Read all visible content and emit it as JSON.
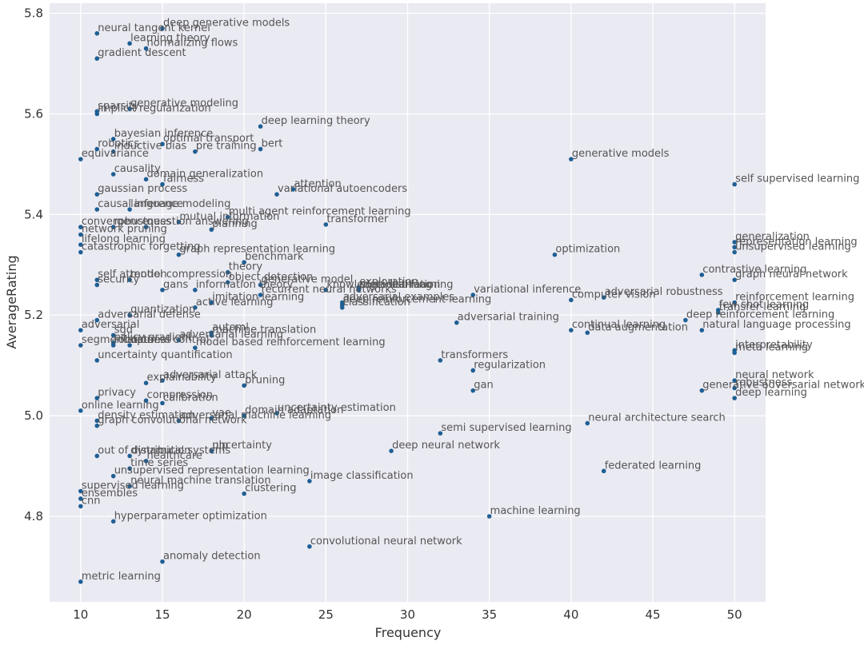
{
  "chart_data": {
    "type": "scatter",
    "title": "",
    "xlabel": "Frequency",
    "ylabel": "AverageRating",
    "xlim": [
      8.1,
      51.9
    ],
    "ylim": [
      4.63,
      5.82
    ],
    "xticks": [
      10,
      15,
      20,
      25,
      30,
      35,
      40,
      45,
      50
    ],
    "yticks": [
      4.8,
      5.0,
      5.2,
      5.4,
      5.6,
      5.8
    ],
    "grid": true,
    "legend": "none",
    "colors": {
      "background": "#eaeaf2",
      "grid": "#ffffff",
      "point": "#1f5f94",
      "label": "#555555"
    },
    "points": [
      {
        "label": "deep generative models",
        "x": 15,
        "y": 5.77
      },
      {
        "label": "neural tangent kernel",
        "x": 11,
        "y": 5.76
      },
      {
        "label": "learning theory",
        "x": 13,
        "y": 5.74
      },
      {
        "label": "normalizing flows",
        "x": 14,
        "y": 5.73
      },
      {
        "label": "gradient descent",
        "x": 11,
        "y": 5.71
      },
      {
        "label": "sparsity",
        "x": 11,
        "y": 5.605
      },
      {
        "label": "generative modeling",
        "x": 13,
        "y": 5.61
      },
      {
        "label": "implicit regularization",
        "x": 11,
        "y": 5.6
      },
      {
        "label": "deep learning theory",
        "x": 21,
        "y": 5.575
      },
      {
        "label": "bayesian inference",
        "x": 12,
        "y": 5.55
      },
      {
        "label": "optimal transport",
        "x": 15,
        "y": 5.54
      },
      {
        "label": "robotics",
        "x": 11,
        "y": 5.53
      },
      {
        "label": "bert",
        "x": 21,
        "y": 5.53
      },
      {
        "label": "inductive bias",
        "x": 12,
        "y": 5.525
      },
      {
        "label": "pre training",
        "x": 17,
        "y": 5.525
      },
      {
        "label": "equivariance",
        "x": 10,
        "y": 5.51
      },
      {
        "label": "generative models",
        "x": 40,
        "y": 5.51
      },
      {
        "label": "causality",
        "x": 12,
        "y": 5.48
      },
      {
        "label": "domain generalization",
        "x": 14,
        "y": 5.47
      },
      {
        "label": "fairness",
        "x": 15,
        "y": 5.46
      },
      {
        "label": "self supervised learning",
        "x": 50,
        "y": 5.46
      },
      {
        "label": "attention",
        "x": 23,
        "y": 5.45
      },
      {
        "label": "gaussian process",
        "x": 11,
        "y": 5.44
      },
      {
        "label": "variational autoencoders",
        "x": 22,
        "y": 5.44
      },
      {
        "label": "causal inference",
        "x": 11,
        "y": 5.41
      },
      {
        "label": "language modeling",
        "x": 13,
        "y": 5.41
      },
      {
        "label": "multi agent reinforcement learning",
        "x": 19,
        "y": 5.395
      },
      {
        "label": "mutual information",
        "x": 16,
        "y": 5.385
      },
      {
        "label": "transformer",
        "x": 25,
        "y": 5.38
      },
      {
        "label": "convergence",
        "x": 10,
        "y": 5.375
      },
      {
        "label": "question answering",
        "x": 14,
        "y": 5.375
      },
      {
        "label": "robustness",
        "x": 12,
        "y": 5.375
      },
      {
        "label": "planning",
        "x": 18,
        "y": 5.37
      },
      {
        "label": "network pruning",
        "x": 10,
        "y": 5.36
      },
      {
        "label": "generalization",
        "x": 50,
        "y": 5.345
      },
      {
        "label": "lifelong learning",
        "x": 10,
        "y": 5.34
      },
      {
        "label": "representation learning",
        "x": 50,
        "y": 5.335
      },
      {
        "label": "catastrophic forgetting",
        "x": 10,
        "y": 5.325
      },
      {
        "label": "graph representation learning",
        "x": 16,
        "y": 5.32
      },
      {
        "label": "unsupervised learning",
        "x": 50,
        "y": 5.325
      },
      {
        "label": "optimization",
        "x": 39,
        "y": 5.32
      },
      {
        "label": "benchmark",
        "x": 20,
        "y": 5.305
      },
      {
        "label": "theory",
        "x": 19,
        "y": 5.285
      },
      {
        "label": "contrastive learning",
        "x": 48,
        "y": 5.28
      },
      {
        "label": "self attention",
        "x": 11,
        "y": 5.27
      },
      {
        "label": "model compression",
        "x": 13,
        "y": 5.27
      },
      {
        "label": "graph neural network",
        "x": 50,
        "y": 5.27
      },
      {
        "label": "object detection",
        "x": 19,
        "y": 5.265
      },
      {
        "label": "security",
        "x": 11,
        "y": 5.26
      },
      {
        "label": "generative model",
        "x": 21,
        "y": 5.26
      },
      {
        "label": "information theory",
        "x": 17,
        "y": 5.25
      },
      {
        "label": "gans",
        "x": 15,
        "y": 5.25
      },
      {
        "label": "exploration",
        "x": 27,
        "y": 5.255
      },
      {
        "label": "knowledge distillation",
        "x": 25,
        "y": 5.25
      },
      {
        "label": "meta learning",
        "x": 27,
        "y": 5.25
      },
      {
        "label": "continual learning",
        "x": 27,
        "y": 5.25
      },
      {
        "label": "recurrent neural networks",
        "x": 21,
        "y": 5.24
      },
      {
        "label": "variational inference",
        "x": 34,
        "y": 5.24
      },
      {
        "label": "adversarial robustness",
        "x": 42,
        "y": 5.235
      },
      {
        "label": "computer vision",
        "x": 40,
        "y": 5.23
      },
      {
        "label": "reinforcement learning",
        "x": 50,
        "y": 5.225
      },
      {
        "label": "adversarial examples",
        "x": 26,
        "y": 5.225
      },
      {
        "label": "imitation learning",
        "x": 18,
        "y": 5.225
      },
      {
        "label": "deep reinforcement learning",
        "x": 26,
        "y": 5.22
      },
      {
        "label": "classification",
        "x": 26,
        "y": 5.215
      },
      {
        "label": "few shot learning",
        "x": 49,
        "y": 5.21
      },
      {
        "label": "active learning",
        "x": 17,
        "y": 5.215
      },
      {
        "label": "transfer learning",
        "x": 49,
        "y": 5.205
      },
      {
        "label": "quantization",
        "x": 13,
        "y": 5.2
      },
      {
        "label": "adversarial defense",
        "x": 11,
        "y": 5.19
      },
      {
        "label": "deep reinforcement learning",
        "x": 47,
        "y": 5.19
      },
      {
        "label": "adversarial training",
        "x": 33,
        "y": 5.185
      },
      {
        "label": "adversarial",
        "x": 10,
        "y": 5.17
      },
      {
        "label": "continual learning",
        "x": 40,
        "y": 5.17
      },
      {
        "label": "natural language processing",
        "x": 48,
        "y": 5.17
      },
      {
        "label": "data augmentation",
        "x": 41,
        "y": 5.165
      },
      {
        "label": "automl",
        "x": 18,
        "y": 5.165
      },
      {
        "label": "sgd",
        "x": 12,
        "y": 5.16
      },
      {
        "label": "machine translation",
        "x": 18,
        "y": 5.16
      },
      {
        "label": "policy gradient",
        "x": 12,
        "y": 5.145
      },
      {
        "label": "adversarial learning",
        "x": 16,
        "y": 5.15
      },
      {
        "label": "robustness",
        "x": 12,
        "y": 5.14
      },
      {
        "label": "segmentation",
        "x": 10,
        "y": 5.14
      },
      {
        "label": "optimal control",
        "x": 13,
        "y": 5.14
      },
      {
        "label": "model based reinforcement learning",
        "x": 17,
        "y": 5.135
      },
      {
        "label": "interpretability",
        "x": 50,
        "y": 5.13
      },
      {
        "label": "meta learning",
        "x": 50,
        "y": 5.125
      },
      {
        "label": "transformers",
        "x": 32,
        "y": 5.11
      },
      {
        "label": "uncertainty quantification",
        "x": 11,
        "y": 5.11
      },
      {
        "label": "regularization",
        "x": 34,
        "y": 5.09
      },
      {
        "label": "neural network",
        "x": 50,
        "y": 5.07
      },
      {
        "label": "adversarial attack",
        "x": 15,
        "y": 5.07
      },
      {
        "label": "explainability",
        "x": 14,
        "y": 5.065
      },
      {
        "label": "pruning",
        "x": 20,
        "y": 5.06
      },
      {
        "label": "generative adversarial network",
        "x": 48,
        "y": 5.05
      },
      {
        "label": "gan",
        "x": 34,
        "y": 5.05
      },
      {
        "label": "robustness",
        "x": 50,
        "y": 5.055
      },
      {
        "label": "privacy",
        "x": 11,
        "y": 5.035
      },
      {
        "label": "deep learning",
        "x": 50,
        "y": 5.035
      },
      {
        "label": "compression",
        "x": 14,
        "y": 5.03
      },
      {
        "label": "calibration",
        "x": 15,
        "y": 5.025
      },
      {
        "label": "online learning",
        "x": 10,
        "y": 5.01
      },
      {
        "label": "uncertainty estimation",
        "x": 22,
        "y": 5.005
      },
      {
        "label": "domain adaptation",
        "x": 20,
        "y": 5.0
      },
      {
        "label": "vae",
        "x": 18,
        "y": 4.995
      },
      {
        "label": "density estimation",
        "x": 11,
        "y": 4.99
      },
      {
        "label": "adversarial machine learning",
        "x": 16,
        "y": 4.99
      },
      {
        "label": "neural architecture search",
        "x": 41,
        "y": 4.985
      },
      {
        "label": "graph convolutional network",
        "x": 11,
        "y": 4.98
      },
      {
        "label": "semi supervised learning",
        "x": 32,
        "y": 4.965
      },
      {
        "label": "deep neural network",
        "x": 29,
        "y": 4.93
      },
      {
        "label": "nlp",
        "x": 18,
        "y": 4.93
      },
      {
        "label": "uncertainty",
        "x": 18,
        "y": 4.93
      },
      {
        "label": "dynamical systems",
        "x": 13,
        "y": 4.92
      },
      {
        "label": "out of distribution",
        "x": 11,
        "y": 4.92
      },
      {
        "label": "healthcare",
        "x": 14,
        "y": 4.91
      },
      {
        "label": "time series",
        "x": 13,
        "y": 4.895
      },
      {
        "label": "federated learning",
        "x": 42,
        "y": 4.89
      },
      {
        "label": "unsupervised representation learning",
        "x": 12,
        "y": 4.88
      },
      {
        "label": "image classification",
        "x": 24,
        "y": 4.87
      },
      {
        "label": "neural machine translation",
        "x": 13,
        "y": 4.86
      },
      {
        "label": "supervised learning",
        "x": 10,
        "y": 4.85
      },
      {
        "label": "clustering",
        "x": 20,
        "y": 4.845
      },
      {
        "label": "ensembles",
        "x": 10,
        "y": 4.835
      },
      {
        "label": "cnn",
        "x": 10,
        "y": 4.82
      },
      {
        "label": "machine learning",
        "x": 35,
        "y": 4.8
      },
      {
        "label": "hyperparameter optimization",
        "x": 12,
        "y": 4.79
      },
      {
        "label": "convolutional neural network",
        "x": 24,
        "y": 4.74
      },
      {
        "label": "anomaly detection",
        "x": 15,
        "y": 4.71
      },
      {
        "label": "metric learning",
        "x": 10,
        "y": 4.67
      }
    ]
  }
}
